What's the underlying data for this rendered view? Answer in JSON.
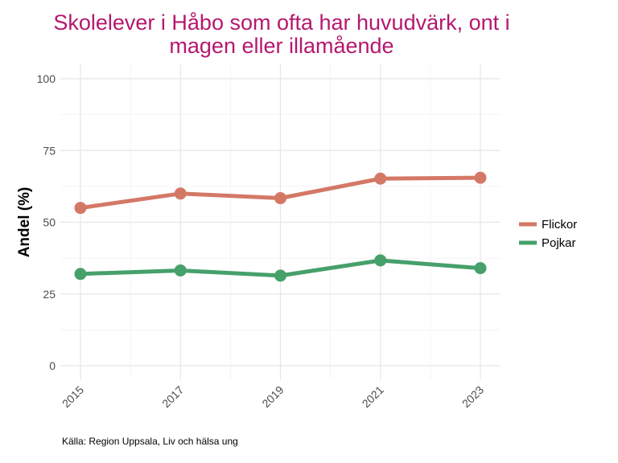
{
  "chart_data": {
    "type": "line",
    "title": "Skolelever i Håbo som ofta har huvudvärk, ont i magen eller illamående",
    "xlabel": "",
    "ylabel": "Andel (%)",
    "x": [
      "2015",
      "2017",
      "2019",
      "2021",
      "2023"
    ],
    "ylim": [
      0,
      100
    ],
    "yticks": [
      0,
      25,
      50,
      75,
      100
    ],
    "grid": true,
    "legend_position": "right",
    "series": [
      {
        "name": "Flickor",
        "color": "#d47866",
        "values": [
          55,
          60,
          58.4,
          65.2,
          65.5
        ]
      },
      {
        "name": "Pojkar",
        "color": "#46a06a",
        "values": [
          32,
          33.2,
          31.4,
          36.7,
          34
        ]
      }
    ],
    "source": "Källa: Region Uppsala, Liv och hälsa ung"
  }
}
